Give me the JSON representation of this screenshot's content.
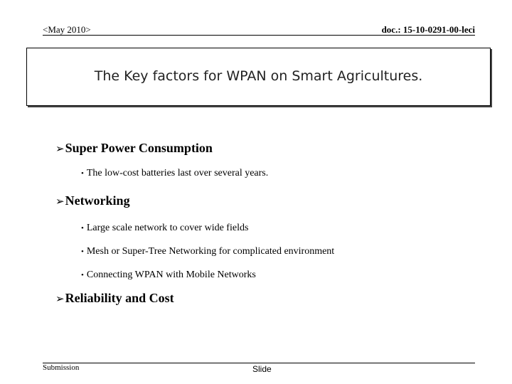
{
  "header": {
    "date": "<May 2010>",
    "doc": "doc.: 15-10-0291-00-leci"
  },
  "title": "The Key factors for WPAN on Smart Agricultures.",
  "sections": [
    {
      "heading": "Super Power Consumption",
      "items": [
        "The low-cost batteries last over several years."
      ]
    },
    {
      "heading": "Networking",
      "items": [
        "Large scale network to cover wide fields",
        "Mesh or Super-Tree Networking for complicated environment",
        "Connecting WPAN with Mobile Networks"
      ]
    },
    {
      "heading": "Reliability and Cost",
      "items": []
    }
  ],
  "footer": {
    "left": "Submission",
    "center": "Slide"
  },
  "icons": {
    "section_bullet": "arrow-bullet-icon",
    "item_bullet": "dot-bullet-icon"
  }
}
